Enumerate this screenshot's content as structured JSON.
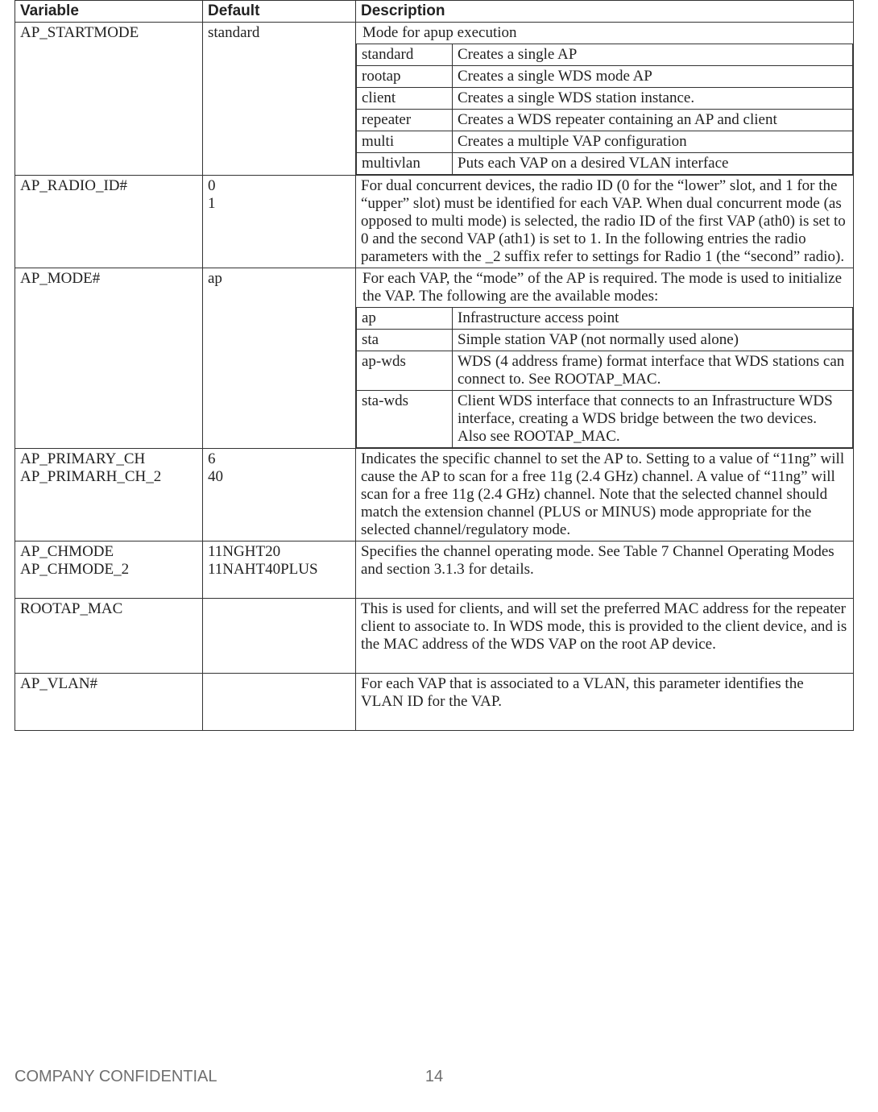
{
  "header": {
    "variable": "Variable",
    "default": "Default",
    "description": "Description"
  },
  "rows": {
    "ap_startmode": {
      "variable": "AP_STARTMODE",
      "default": "standard",
      "intro": "Mode for apup execution",
      "options": [
        {
          "key": "standard",
          "desc": "Creates a single AP"
        },
        {
          "key": "rootap",
          "desc": "Creates a single WDS mode AP"
        },
        {
          "key": "client",
          "desc": "Creates a single WDS station instance."
        },
        {
          "key": "repeater",
          "desc": "Creates a WDS repeater containing an AP and client"
        },
        {
          "key": "multi",
          "desc": "Creates a multiple VAP configuration"
        },
        {
          "key": "multivlan",
          "desc": "Puts each VAP on a desired VLAN interface"
        }
      ]
    },
    "ap_radio_id": {
      "variable": "AP_RADIO_ID#",
      "default": "0\n1",
      "desc": "For dual concurrent devices, the radio ID (0 for the “lower” slot, and 1 for the “upper” slot) must be identified for each VAP. When dual concurrent mode (as opposed to multi mode) is selected, the radio ID of the first VAP (ath0) is set to 0 and the second VAP (ath1) is set to 1. In the following entries the radio parameters with the _2 suffix refer to settings for Radio 1 (the “second” radio)."
    },
    "ap_mode": {
      "variable": "AP_MODE#",
      "default": "ap",
      "intro": "For each VAP, the “mode” of the AP is required. The mode is used to initialize the VAP. The following are the available modes:",
      "options": [
        {
          "key": "ap",
          "desc": "Infrastructure access point"
        },
        {
          "key": "sta",
          "desc": "Simple station VAP (not normally used alone)"
        },
        {
          "key": "ap-wds",
          "desc": "WDS (4 address frame) format interface that WDS stations can connect to. See ROOTAP_MAC."
        },
        {
          "key": "sta-wds",
          "desc": "Client WDS interface that connects to an Infrastructure WDS interface, creating a WDS bridge between the two devices. Also see ROOTAP_MAC."
        }
      ]
    },
    "ap_primary_ch": {
      "variable": "AP_PRIMARY_CH\nAP_PRIMARH_CH_2",
      "default": "6\n40",
      "desc": "Indicates the specific channel to set the AP to. Setting to a value of “11ng” will cause the AP to scan for a free 11g (2.4 GHz) channel. A value of “11ng” will scan for a free 11g (2.4 GHz) channel. Note that the selected channel should match the extension channel (PLUS or MINUS) mode appropriate for the selected channel/regulatory mode."
    },
    "ap_chmode": {
      "variable": "AP_CHMODE\nAP_CHMODE_2",
      "default": "11NGHT20\n11NAHT40PLUS",
      "desc": "Specifies the channel operating mode. See Table 7 Channel Operating Modes\nand section 3.1.3 for details.\n "
    },
    "rootap_mac": {
      "variable": "ROOTAP_MAC",
      "default": "",
      "desc": "This is used for clients, and will set the preferred MAC address for the repeater client to associate to. In WDS mode, this is provided to the client device, and is the MAC address of the WDS VAP on the root AP device.\n "
    },
    "ap_vlan": {
      "variable": "AP_VLAN#",
      "default": "",
      "desc": "For each VAP that is associated to a VLAN, this parameter identifies the VLAN ID for the VAP.\n "
    }
  },
  "footer": {
    "confidential": "COMPANY CONFIDENTIAL",
    "page": "14"
  }
}
